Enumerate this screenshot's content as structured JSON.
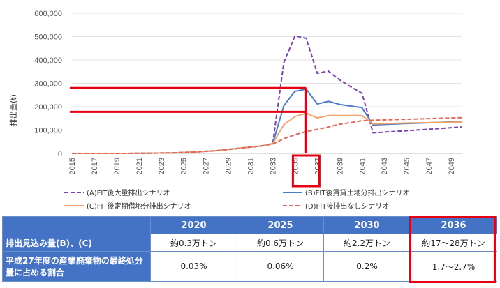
{
  "chart_data": {
    "type": "line",
    "ylabel": "排出量(t)",
    "ylim": [
      0,
      600000
    ],
    "yticks": [
      "0",
      "100,000",
      "200,000",
      "300,000",
      "400,000",
      "500,000",
      "600,000"
    ],
    "ytick_values": [
      0,
      100000,
      200000,
      300000,
      400000,
      500000,
      600000
    ],
    "xlim": [
      2015,
      2050
    ],
    "xticks": [
      "2015",
      "2017",
      "2019",
      "2021",
      "2023",
      "2025",
      "2027",
      "2029",
      "2031",
      "2033",
      "2035",
      "2037",
      "2039",
      "2041",
      "2043",
      "2045",
      "2047",
      "2049"
    ],
    "grid": true,
    "legend_position": "bottom",
    "series": [
      {
        "name": "(A)FIT後大量排出シナリオ",
        "color": "#7b3fb3",
        "dash": "dashed",
        "x": [
          2015,
          2020,
          2024,
          2026,
          2028,
          2030,
          2032,
          2033,
          2034,
          2035,
          2036,
          2037,
          2038,
          2039,
          2040,
          2041,
          2042,
          2045,
          2050
        ],
        "y": [
          0,
          0,
          2000,
          6000,
          12000,
          22000,
          32000,
          42000,
          390000,
          503000,
          493000,
          343000,
          352000,
          315000,
          285000,
          258000,
          88000,
          97000,
          113000
        ]
      },
      {
        "name": "(B)FIT後賃貸土地分排出シナリオ",
        "color": "#4a7cc4",
        "dash": "solid",
        "x": [
          2015,
          2020,
          2024,
          2026,
          2028,
          2030,
          2032,
          2033,
          2034,
          2035,
          2036,
          2037,
          2038,
          2039,
          2040,
          2041,
          2042,
          2045,
          2050
        ],
        "y": [
          0,
          0,
          2000,
          6000,
          12000,
          22000,
          32000,
          42000,
          205000,
          266000,
          275000,
          212000,
          223000,
          210000,
          203000,
          196000,
          122000,
          128000,
          136000
        ]
      },
      {
        "name": "(C)FIT後定期借地分排出シナリオ",
        "color": "#f4a36b",
        "dash": "solid",
        "x": [
          2015,
          2020,
          2024,
          2026,
          2028,
          2030,
          2032,
          2033,
          2034,
          2035,
          2036,
          2037,
          2038,
          2039,
          2040,
          2041,
          2042,
          2045,
          2050
        ],
        "y": [
          0,
          0,
          2000,
          6000,
          12000,
          22000,
          32000,
          42000,
          123000,
          158000,
          172000,
          152000,
          162000,
          162000,
          162000,
          162000,
          126000,
          130000,
          134000
        ]
      },
      {
        "name": "(D)FIT後排出なしシナリオ",
        "color": "#e0685a",
        "dash": "dashed",
        "x": [
          2015,
          2020,
          2024,
          2026,
          2028,
          2030,
          2032,
          2033,
          2034,
          2035,
          2036,
          2037,
          2038,
          2039,
          2040,
          2041,
          2042,
          2045,
          2050
        ],
        "y": [
          0,
          0,
          2000,
          6000,
          12000,
          22000,
          32000,
          40000,
          63000,
          80000,
          93000,
          103000,
          113000,
          125000,
          132000,
          140000,
          142000,
          146000,
          153000
        ]
      }
    ],
    "annotations": {
      "hline_values": [
        280000,
        178000
      ],
      "hline_end_x": 2036,
      "highlight_year": "2036",
      "color": "#e60012"
    }
  },
  "table": {
    "headers": [
      "",
      "2020",
      "2025",
      "2030",
      "2036"
    ],
    "rows": [
      {
        "label": "排出見込み量(B)、(C)",
        "cells": [
          "約0.3万トン",
          "約0.6万トン",
          "約2.2万トン",
          "約17～28万トン"
        ]
      },
      {
        "label": "平成27年度の産業廃棄物の最終処分量に占める割合",
        "cells": [
          "0.03%",
          "0.06%",
          "0.2%",
          "1.7～2.7%"
        ]
      }
    ]
  }
}
